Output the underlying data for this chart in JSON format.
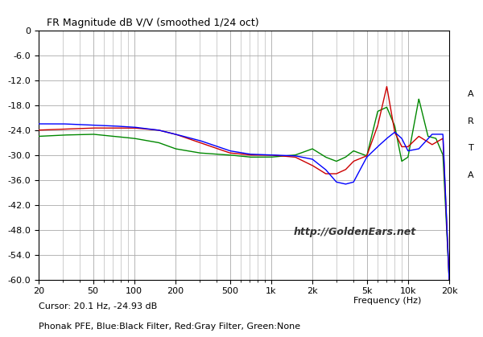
{
  "title": "FR Magnitude dB V/V (smoothed 1/24 oct)",
  "xlabel": "Frequency (Hz)",
  "ylabel": "",
  "xlim": [
    20,
    20000
  ],
  "ylim": [
    -60,
    0
  ],
  "yticks": [
    0,
    -6.0,
    -12.0,
    -18.0,
    -24.0,
    -30.0,
    -36.0,
    -42.0,
    -48.0,
    -54.0,
    -60.0
  ],
  "xtick_positions": [
    20,
    50,
    100,
    200,
    500,
    1000,
    2000,
    5000,
    10000,
    20000
  ],
  "xtick_labels": [
    "20",
    "50",
    "100",
    "200",
    "500",
    "1k",
    "2k",
    "5k",
    "10k",
    "20k"
  ],
  "watermark": "http://GoldenEars.net",
  "caption": "Cursor: 20.1 Hz, -24.93 dB",
  "caption2": "Phonak PFE, Blue:Black Filter, Red:Gray Filter, Green:None",
  "arta_label": "A\nR\nT\nA",
  "background_color": "#ffffff",
  "plot_bg_color": "#ffffff",
  "grid_color": "#aaaaaa",
  "line_blue_color": "#0000ff",
  "line_red_color": "#cc0000",
  "line_green_color": "#008800",
  "line_width": 1.0
}
